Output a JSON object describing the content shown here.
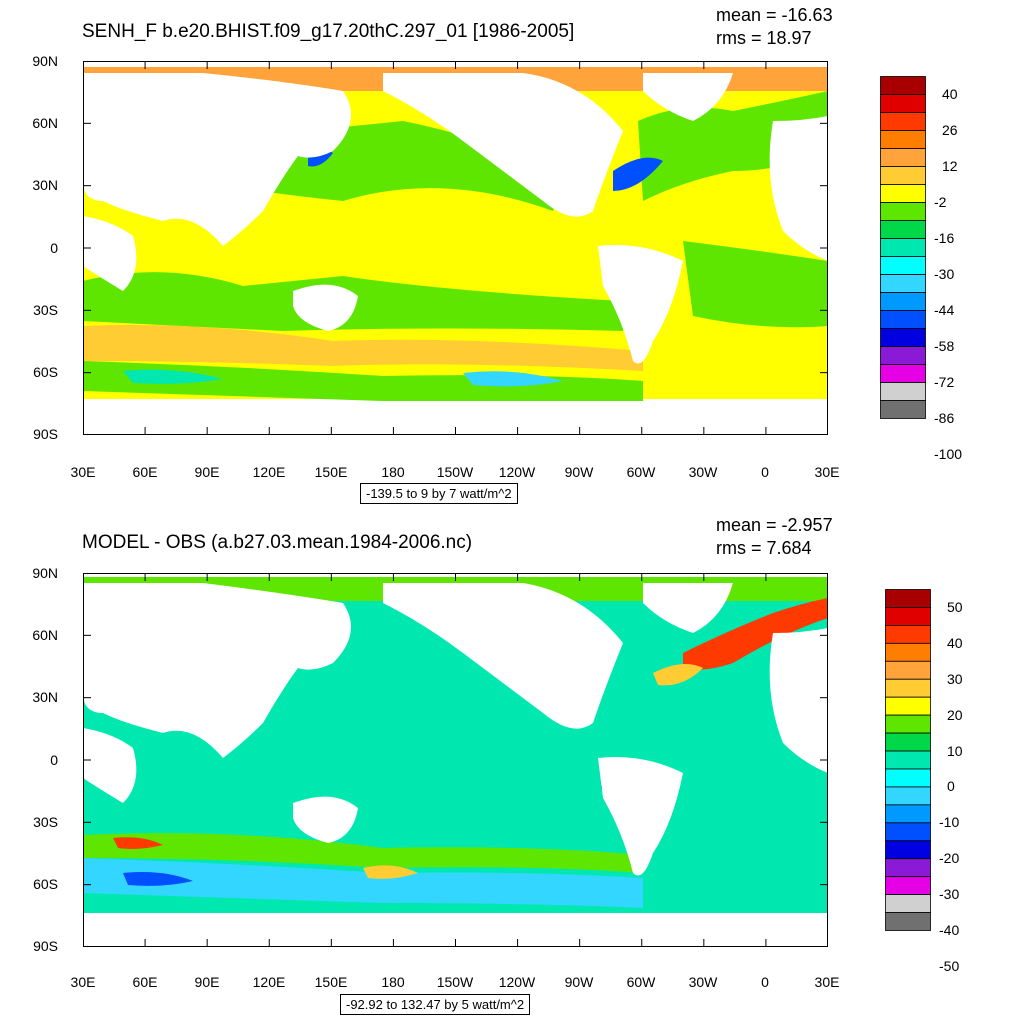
{
  "panels": [
    {
      "title": "SENH_F b.e20.BHIST.f09_g17.20thC.297_01 [1986-2005]",
      "mean": "mean = -16.63",
      "rms": "rms = 18.97",
      "range_label": "-139.5 to 9 by 7 watt/m^2",
      "colorbar_labels": [
        "40",
        "26",
        "12",
        "-2",
        "-16",
        "-30",
        "-44",
        "-58",
        "-72",
        "-86",
        "-100"
      ],
      "colorbar_colors": [
        "#a80000",
        "#e00000",
        "#ff3a00",
        "#ff7d00",
        "#ffa33a",
        "#ffcc33",
        "#ffff00",
        "#5fe600",
        "#00d84a",
        "#00e8b0",
        "#00ffff",
        "#33d6ff",
        "#0099ff",
        "#0050ff",
        "#0000e0",
        "#8a1ad6",
        "#e600e6",
        "#d0d0d0",
        "#707070"
      ],
      "colors": {
        "ocean_main": "#ffff00",
        "band_green": "#5fe600",
        "subpolar": "#ffcc33",
        "arctic": "#ffa33a",
        "cold_cyan": "#00e8b0",
        "cold_blue": "#33d6ff"
      }
    },
    {
      "title": "MODEL - OBS (a.b27.03.mean.1984-2006.nc)",
      "mean": "mean = -2.957",
      "rms": "rms = 7.684",
      "range_label": "-92.92 to 132.47 by 5 watt/m^2",
      "colorbar_labels": [
        "50",
        "40",
        "30",
        "20",
        "10",
        "0",
        "-10",
        "-20",
        "-30",
        "-40",
        "-50"
      ],
      "colorbar_colors": [
        "#a80000",
        "#e00000",
        "#ff3a00",
        "#ff7d00",
        "#ffa33a",
        "#ffcc33",
        "#ffff00",
        "#5fe600",
        "#00d84a",
        "#00e8b0",
        "#00ffff",
        "#33d6ff",
        "#0099ff",
        "#0050ff",
        "#0000e0",
        "#8a1ad6",
        "#e600e6",
        "#d0d0d0",
        "#707070"
      ],
      "colors": {
        "ocean_main": "#00e8b0",
        "band_green": "#5fe600",
        "southern": "#33d6ff",
        "arctic": "#5fe600",
        "warm": "#ff3a00",
        "cold_blue": "#0099ff"
      }
    }
  ],
  "axes": {
    "lat_labels": [
      "90N",
      "60N",
      "30N",
      "0",
      "30S",
      "60S",
      "90S"
    ],
    "lon_labels": [
      "30E",
      "60E",
      "90E",
      "120E",
      "150E",
      "180",
      "150W",
      "120W",
      "90W",
      "60W",
      "30W",
      "0",
      "30E"
    ],
    "lat_range": [
      -90,
      90
    ],
    "lon_range": [
      30,
      390
    ]
  }
}
